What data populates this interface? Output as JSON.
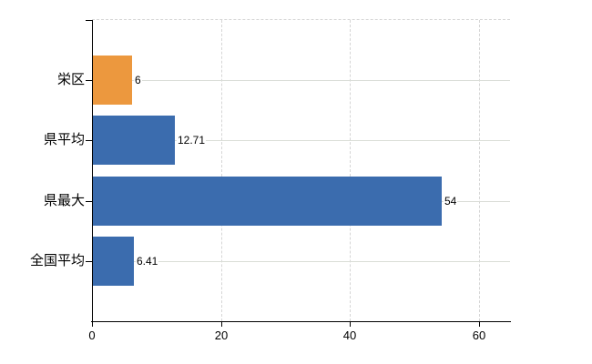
{
  "chart_data": {
    "type": "bar",
    "orientation": "horizontal",
    "categories": [
      "栄区",
      "県平均",
      "県最大",
      "全国平均"
    ],
    "values": [
      6,
      12.71,
      54,
      6.41
    ],
    "value_labels": [
      "6",
      "12.71",
      "54",
      "6.41"
    ],
    "series": [
      {
        "name": "highlighted-row",
        "categories": [
          "栄区"
        ],
        "color": "#EC983E"
      },
      {
        "name": "reference-rows",
        "categories": [
          "県平均",
          "県最大",
          "全国平均"
        ],
        "color": "#3B6CAE"
      }
    ],
    "bar_colors": [
      "#EC983E",
      "#3B6CAE",
      "#3B6CAE",
      "#3B6CAE"
    ],
    "x_ticks": [
      0,
      20,
      40,
      60
    ],
    "x_tick_labels": [
      "0",
      "20",
      "40",
      "60"
    ],
    "xlim": [
      0,
      64.8
    ],
    "grid": {
      "vertical_lines": "dashed",
      "horizontal_lines": "solid",
      "top_border": "dashed"
    },
    "legend": "none"
  },
  "colors": {
    "background": "#FFFFFF",
    "axis": "#000000",
    "text": "#000000",
    "grid_solid": "#DADDD7",
    "grid_dashed": "#D5D5D5",
    "bar_orange": "#EC983E",
    "bar_blue": "#3B6CAE"
  }
}
